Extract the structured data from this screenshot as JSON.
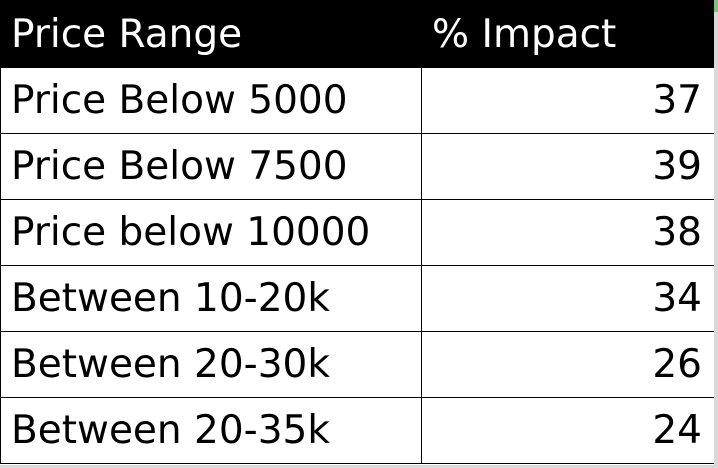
{
  "table": {
    "columns": [
      "Price Range",
      "% Impact"
    ],
    "rows": [
      {
        "range": "Price Below 5000",
        "impact": "37"
      },
      {
        "range": "Price Below 7500",
        "impact": "39"
      },
      {
        "range": "Price below 10000",
        "impact": "38"
      },
      {
        "range": "Between 10-20k",
        "impact": "34"
      },
      {
        "range": "Between 20-30k",
        "impact": "26"
      },
      {
        "range": "Between 20-35k",
        "impact": "24"
      }
    ]
  },
  "colors": {
    "header_background": "#000000",
    "header_text": "#ffffff",
    "cell_text": "#000000",
    "grid_line": "#000000",
    "sheet_edge": "#d9d9d9"
  }
}
